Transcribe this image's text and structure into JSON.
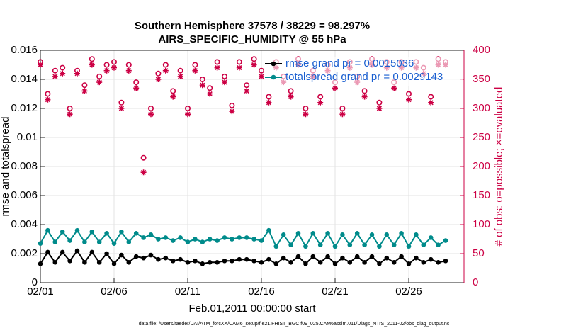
{
  "chart_data": {
    "type": "line",
    "title": [
      "Southern Hemisphere 37578 / 38229 = 98.297%",
      "AIRS_SPECIFIC_HUMIDITY @ 55 hPa"
    ],
    "xlabel": "Feb.01,2011 00:00:00 start",
    "ylabel": "rmse and totalspread",
    "y2label": "# of obs: o=possible; ×=evaluated",
    "footnote": "data file: /Users/raeder/DAI/ATM_forcXX/CAM6_setup/f.e21.FHIST_BGC.f09_025.CAM6assim.011/Diags_NTrS_2011-02/obs_diag_output.nc",
    "y2color": "#cc0044",
    "grid": true,
    "legend": "upper right",
    "xlim": [
      1,
      29.75
    ],
    "xticks": [
      {
        "value": 1,
        "label": "02/01"
      },
      {
        "value": 6,
        "label": "02/06"
      },
      {
        "value": 11,
        "label": "02/11"
      },
      {
        "value": 16,
        "label": "02/16"
      },
      {
        "value": 21,
        "label": "02/21"
      },
      {
        "value": 26,
        "label": "02/26"
      }
    ],
    "ylim": [
      0,
      0.016
    ],
    "yticks": [
      0,
      0.002,
      0.004,
      0.006,
      0.008,
      0.01,
      0.012,
      0.014,
      0.016
    ],
    "y2lim": [
      0,
      400
    ],
    "y2ticks": [
      0,
      50,
      100,
      150,
      200,
      250,
      300,
      350,
      400
    ],
    "x": [
      1,
      1.5,
      2,
      2.5,
      3,
      3.5,
      4,
      4.5,
      5,
      5.5,
      6,
      6.5,
      7,
      7.5,
      8,
      8.5,
      9,
      9.5,
      10,
      10.5,
      11,
      11.5,
      12,
      12.5,
      13,
      13.5,
      14,
      14.5,
      15,
      15.5,
      16,
      16.5,
      17,
      17.5,
      18,
      18.5,
      19,
      19.5,
      20,
      20.5,
      21,
      21.5,
      22,
      22.5,
      23,
      23.5,
      24,
      24.5,
      25,
      25.5,
      26,
      26.5,
      27,
      27.5,
      28,
      28.5
    ],
    "series": [
      {
        "name": "rmse grand pr = 0.0015036",
        "color": "#000000",
        "marker": "dot",
        "values": [
          0.0013,
          0.0021,
          0.0014,
          0.0021,
          0.0015,
          0.0022,
          0.0014,
          0.0021,
          0.0014,
          0.002,
          0.0013,
          0.0019,
          0.0014,
          0.0018,
          0.0017,
          0.0019,
          0.0016,
          0.0017,
          0.0015,
          0.0016,
          0.0014,
          0.0015,
          0.0013,
          0.0014,
          0.0014,
          0.0015,
          0.0015,
          0.0016,
          0.0016,
          0.0015,
          0.0014,
          0.0016,
          0.0013,
          0.0017,
          0.0014,
          0.0018,
          0.0013,
          0.0018,
          0.0014,
          0.0018,
          0.0013,
          0.0017,
          0.0014,
          0.0018,
          0.0014,
          0.0018,
          0.0013,
          0.0017,
          0.0014,
          0.0018,
          0.0013,
          0.0017,
          0.0014,
          0.0016,
          0.0014,
          0.0015
        ]
      },
      {
        "name": "totalspread grand pr = 0.0029143",
        "color": "#008b8b",
        "marker": "dot",
        "values": [
          0.0027,
          0.0036,
          0.0028,
          0.0035,
          0.0029,
          0.0036,
          0.0028,
          0.0035,
          0.0028,
          0.0034,
          0.0027,
          0.0035,
          0.0028,
          0.0034,
          0.0031,
          0.0033,
          0.003,
          0.0031,
          0.0029,
          0.0031,
          0.0028,
          0.003,
          0.0028,
          0.003,
          0.0029,
          0.0031,
          0.003,
          0.0031,
          0.0031,
          0.003,
          0.0029,
          0.0036,
          0.0025,
          0.0033,
          0.0026,
          0.0034,
          0.0025,
          0.0034,
          0.0026,
          0.0034,
          0.0025,
          0.0033,
          0.0026,
          0.0034,
          0.0026,
          0.0033,
          0.0025,
          0.0033,
          0.0026,
          0.0034,
          0.0025,
          0.0033,
          0.0026,
          0.0031,
          0.0026,
          0.0029
        ]
      },
      {
        "color": "#cc0044",
        "marker": "circle",
        "axis": "y2",
        "values": [
          380,
          325,
          365,
          370,
          300,
          365,
          340,
          385,
          355,
          375,
          380,
          310,
          375,
          345,
          215,
          300,
          360,
          375,
          330,
          365,
          300,
          375,
          350,
          335,
          380,
          355,
          305,
          380,
          340,
          385,
          365,
          320,
          380,
          355,
          330,
          385,
          300,
          365,
          320,
          375,
          345,
          300,
          380,
          355,
          330,
          385,
          310,
          380,
          345,
          380,
          325,
          380,
          370,
          320,
          385,
          380
        ]
      },
      {
        "color": "#cc0044",
        "marker": "star",
        "axis": "y2",
        "values": [
          375,
          315,
          355,
          360,
          290,
          360,
          330,
          375,
          345,
          365,
          370,
          300,
          365,
          335,
          190,
          290,
          350,
          365,
          320,
          355,
          290,
          365,
          340,
          325,
          370,
          345,
          295,
          370,
          330,
          375,
          355,
          310,
          370,
          345,
          320,
          375,
          290,
          355,
          310,
          365,
          335,
          290,
          370,
          345,
          320,
          375,
          300,
          370,
          335,
          370,
          315,
          370,
          360,
          310,
          375,
          375
        ]
      }
    ]
  }
}
